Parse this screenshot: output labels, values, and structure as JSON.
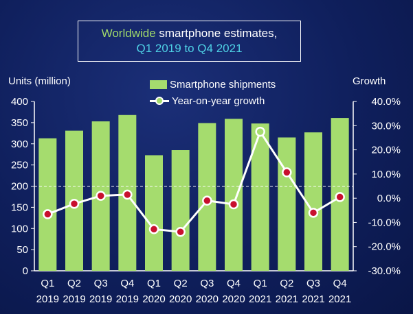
{
  "title": {
    "line1_highlight": "Worldwide",
    "line1_rest": " smartphone estimates,",
    "line2": "Q1 2019 to Q4 2021"
  },
  "legend": {
    "bars": "Smartphone shipments",
    "line": "Year-on-year growth"
  },
  "colors": {
    "bar": "#a5dc6e",
    "line": "#ffffff",
    "marker_fill": "#c8102e",
    "highlight_marker": "#a5dc6e"
  },
  "chart_data": {
    "type": "bar",
    "categories": [
      [
        "Q1",
        "2019"
      ],
      [
        "Q2",
        "2019"
      ],
      [
        "Q3",
        "2019"
      ],
      [
        "Q4",
        "2019"
      ],
      [
        "Q1",
        "2020"
      ],
      [
        "Q2",
        "2020"
      ],
      [
        "Q3",
        "2020"
      ],
      [
        "Q4",
        "2020"
      ],
      [
        "Q1",
        "2021"
      ],
      [
        "Q2",
        "2021"
      ],
      [
        "Q3",
        "2021"
      ],
      [
        "Q4",
        "2021"
      ]
    ],
    "series": [
      {
        "name": "Smartphone shipments",
        "type": "bar",
        "axis": "left",
        "values": [
          313,
          331,
          353,
          368,
          273,
          285,
          349,
          359,
          348,
          315,
          327,
          361
        ]
      },
      {
        "name": "Year-on-year growth",
        "type": "line",
        "axis": "right",
        "values": [
          -6.6,
          -2.3,
          1.0,
          1.5,
          -12.8,
          -13.9,
          -1.0,
          -2.5,
          27.5,
          10.7,
          -6.0,
          0.5
        ]
      }
    ],
    "ylabel_left": "Units (million)",
    "ylabel_right": "Growth",
    "ylim_left": [
      0,
      400
    ],
    "yticks_left": [
      "0",
      "50",
      "100",
      "150",
      "200",
      "250",
      "300",
      "350",
      "400"
    ],
    "ylim_right": [
      -30,
      40
    ],
    "yticks_right": [
      "-30.0%",
      "-20.0%",
      "-10.0%",
      "0.0%",
      "10.0%",
      "20.0%",
      "30.0%",
      "40.0%"
    ],
    "reference_line": {
      "axis": "left",
      "value": 200,
      "style": "dashed"
    },
    "highlight_point_index": 8
  }
}
